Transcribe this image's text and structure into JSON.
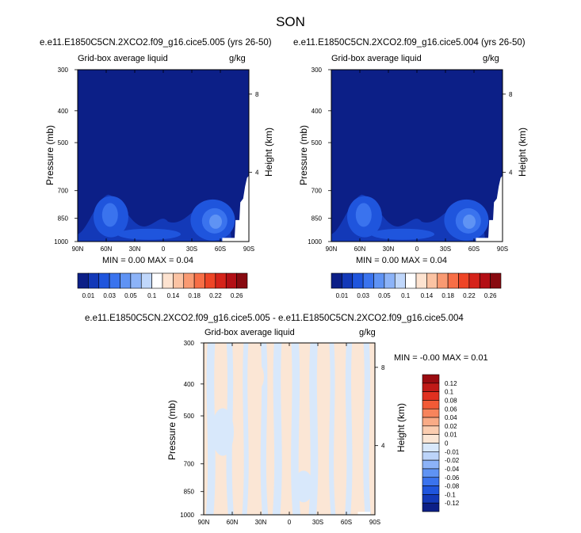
{
  "season_title": "SON",
  "panel_left": {
    "case_title": "e.e11.E1850C5CN.2XCO2.f09_g16.cice5.005 (yrs 26-50)",
    "subtitle_left": "Grid-box average liquid",
    "subtitle_right": "g/kg",
    "min_max": "MIN =  0.00  MAX =  0.04"
  },
  "panel_right": {
    "case_title": "e.e11.E1850C5CN.2XCO2.f09_g16.cice5.004 (yrs 26-50)",
    "subtitle_left": "Grid-box average liquid",
    "subtitle_right": "g/kg",
    "min_max": "MIN =  0.00  MAX =  0.04"
  },
  "panel_diff": {
    "case_title": "e.e11.E1850C5CN.2XCO2.f09_g16.cice5.005 - e.e11.E1850C5CN.2XCO2.f09_g16.cice5.004",
    "subtitle_left": "Grid-box average liquid",
    "subtitle_right": "g/kg",
    "min_max": "MIN = -0.00  MAX =  0.01"
  },
  "axis": {
    "ylabel": "Pressure (mb)",
    "ylabel_right": "Height (km)",
    "x_ticks": [
      "90N",
      "60N",
      "30N",
      "0",
      "30S",
      "60S",
      "90S"
    ],
    "x_tick_values": [
      90,
      60,
      30,
      0,
      -30,
      -60,
      -90
    ],
    "y_ticks": [
      "300",
      "400",
      "500",
      "700",
      "850",
      "1000"
    ],
    "y_tick_values": [
      300,
      400,
      500,
      700,
      850,
      1000
    ],
    "height_ticks": [
      "8",
      "4"
    ],
    "height_tick_values": [
      8,
      4
    ]
  },
  "colorbar_abs": {
    "colors": [
      "#0c1f87",
      "#1339b8",
      "#1f55dd",
      "#3a73ee",
      "#5f93f4",
      "#8cb3f8",
      "#c0d7fb",
      "#ffffff",
      "#fde3d0",
      "#fbc3a3",
      "#f99a72",
      "#f76e46",
      "#ee4526",
      "#d5231a",
      "#b30f15",
      "#880a10"
    ],
    "labels": [
      "0.01",
      "0.03",
      "0.05",
      "0.1",
      "0.14",
      "0.18",
      "0.22",
      "0.26"
    ]
  },
  "colorbar_diff": {
    "colors": [
      "#0c1f87",
      "#1339b8",
      "#1f55dd",
      "#3a73ee",
      "#5f93f4",
      "#8cb3f8",
      "#bcd4f9",
      "#d8e8fb",
      "#fbe6d5",
      "#fbcdb0",
      "#f9ab86",
      "#f7845c",
      "#f15a36",
      "#e03020",
      "#c01a17",
      "#9a0b10"
    ],
    "labels": [
      "0.12",
      "0.1",
      "0.08",
      "0.06",
      "0.04",
      "0.02",
      "0.01",
      "0",
      "-0.01",
      "-0.02",
      "-0.04",
      "-0.06",
      "-0.08",
      "-0.1",
      "-0.12"
    ]
  },
  "chart_data": [
    {
      "type": "heatmap",
      "title": "e.e11.E1850C5CN.2XCO2.f09_g16.cice5.005 (yrs 26-50)",
      "xlabel": "",
      "ylabel": "Pressure (mb)",
      "xlim": [
        90,
        -90
      ],
      "ylim": [
        1000,
        300
      ],
      "yscale": "log",
      "value_range": [
        0.0,
        0.04
      ],
      "units": "g/kg",
      "features": [
        {
          "lat": 55,
          "p": 830,
          "value": 0.03
        },
        {
          "lat": -55,
          "p": 860,
          "value": 0.04
        },
        {
          "lat": 0,
          "p": 940,
          "value": 0.015
        }
      ]
    },
    {
      "type": "heatmap",
      "title": "e.e11.E1850C5CN.2XCO2.f09_g16.cice5.004 (yrs 26-50)",
      "xlabel": "",
      "ylabel": "Pressure (mb)",
      "xlim": [
        90,
        -90
      ],
      "ylim": [
        1000,
        300
      ],
      "yscale": "log",
      "value_range": [
        0.0,
        0.04
      ],
      "units": "g/kg",
      "features": [
        {
          "lat": 55,
          "p": 830,
          "value": 0.03
        },
        {
          "lat": -55,
          "p": 860,
          "value": 0.04
        },
        {
          "lat": 0,
          "p": 940,
          "value": 0.015
        }
      ]
    },
    {
      "type": "heatmap",
      "title": "e.e11.E1850C5CN.2XCO2.f09_g16.cice5.005 - e.e11.E1850C5CN.2XCO2.f09_g16.cice5.004",
      "xlabel": "",
      "ylabel": "Pressure (mb)",
      "xlim": [
        90,
        -90
      ],
      "ylim": [
        1000,
        300
      ],
      "yscale": "log",
      "value_range": [
        -0.0,
        0.01
      ],
      "units": "g/kg"
    }
  ]
}
